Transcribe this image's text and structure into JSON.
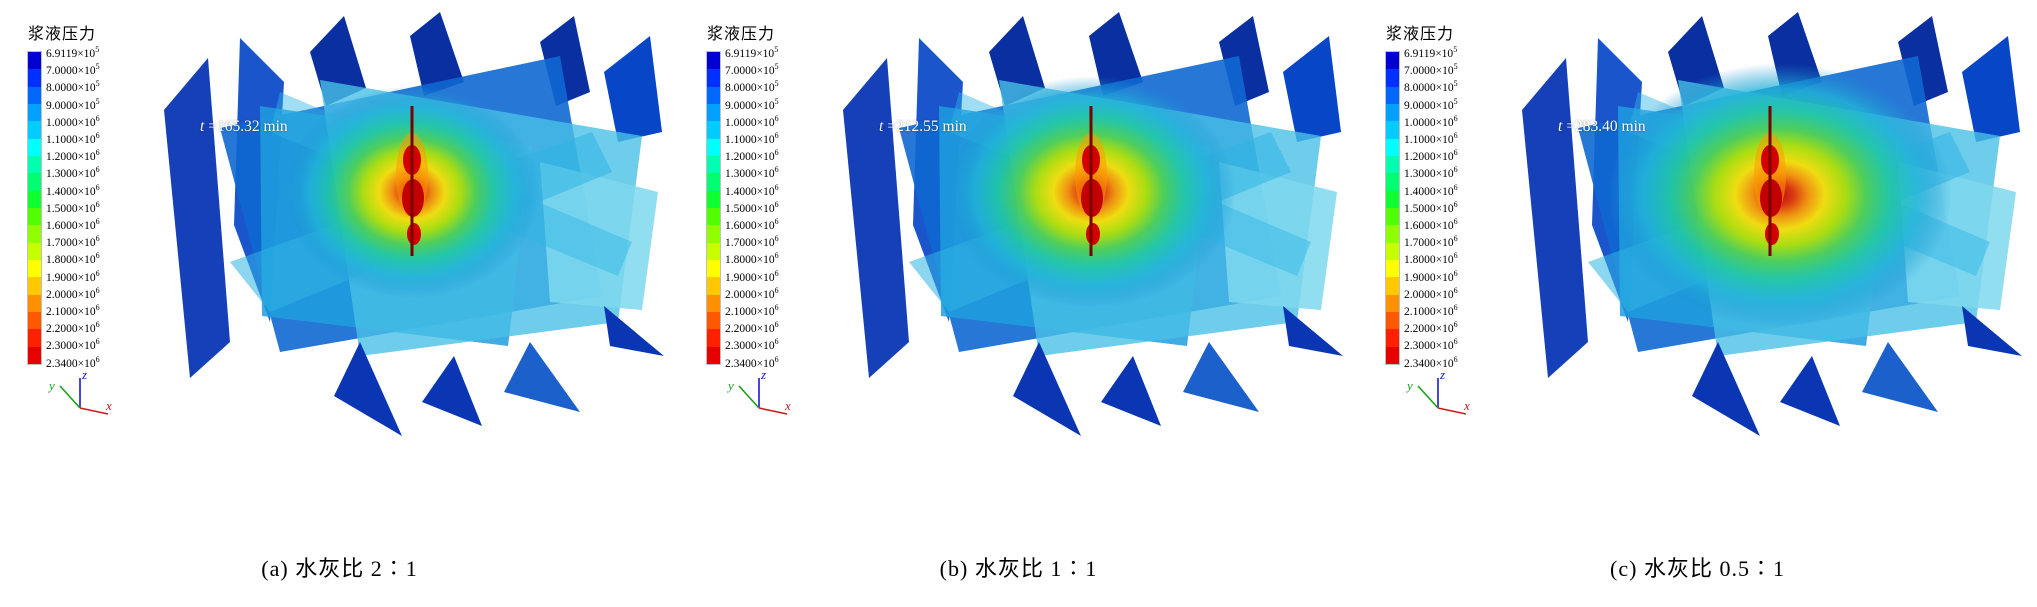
{
  "legend": {
    "title": "浆液压力",
    "ticks": [
      {
        "m": "6.9119",
        "e": "5"
      },
      {
        "m": "7.0000",
        "e": "5"
      },
      {
        "m": "8.0000",
        "e": "5"
      },
      {
        "m": "9.0000",
        "e": "5"
      },
      {
        "m": "1.0000",
        "e": "6"
      },
      {
        "m": "1.1000",
        "e": "6"
      },
      {
        "m": "1.2000",
        "e": "6"
      },
      {
        "m": "1.3000",
        "e": "6"
      },
      {
        "m": "1.4000",
        "e": "6"
      },
      {
        "m": "1.5000",
        "e": "6"
      },
      {
        "m": "1.6000",
        "e": "6"
      },
      {
        "m": "1.7000",
        "e": "6"
      },
      {
        "m": "1.8000",
        "e": "6"
      },
      {
        "m": "1.9000",
        "e": "6"
      },
      {
        "m": "2.0000",
        "e": "6"
      },
      {
        "m": "2.1000",
        "e": "6"
      },
      {
        "m": "2.2000",
        "e": "6"
      },
      {
        "m": "2.3000",
        "e": "6"
      },
      {
        "m": "2.3400",
        "e": "6"
      }
    ],
    "colors": [
      "#0000d2",
      "#0030ff",
      "#0068ff",
      "#00a0ff",
      "#00ccff",
      "#00ffff",
      "#00ffb0",
      "#00ff70",
      "#10ff30",
      "#50ff00",
      "#90ff00",
      "#c8ff00",
      "#ffff00",
      "#ffc800",
      "#ff9000",
      "#ff5800",
      "#ff2000",
      "#e60000"
    ]
  },
  "axes": {
    "x": "x",
    "y": "y",
    "z": "z"
  },
  "panels": [
    {
      "t_symbol": "t",
      "time": "=165.32 min",
      "caption": "(a) 水灰比 2∶1"
    },
    {
      "t_symbol": "t",
      "time": "=212.55 min",
      "caption": "(b) 水灰比 1∶1"
    },
    {
      "t_symbol": "t",
      "time": "=283.40 min",
      "caption": "(c) 水灰比 0.5∶1"
    }
  ],
  "chart_data": [
    {
      "type": "heatmap",
      "title": "(a) 水灰比 2∶1",
      "legend_title": "浆液压力",
      "time_label": "t =165.32 min",
      "time_min": 165.32,
      "scale_min": 691190,
      "scale_max": 2340000,
      "scale_ticks": [
        691190,
        700000,
        800000,
        900000,
        1000000,
        1100000,
        1200000,
        1300000,
        1400000,
        1500000,
        1600000,
        1700000,
        1800000,
        1900000,
        2000000,
        2100000,
        2200000,
        2300000,
        2340000
      ],
      "colormap": "rainbow blue(low)-to-red(high)",
      "legend_position": "left",
      "axes_triad": [
        "x",
        "y",
        "z"
      ]
    },
    {
      "type": "heatmap",
      "title": "(b) 水灰比 1∶1",
      "legend_title": "浆液压力",
      "time_label": "t =212.55 min",
      "time_min": 212.55,
      "scale_min": 691190,
      "scale_max": 2340000,
      "scale_ticks": [
        691190,
        700000,
        800000,
        900000,
        1000000,
        1100000,
        1200000,
        1300000,
        1400000,
        1500000,
        1600000,
        1700000,
        1800000,
        1900000,
        2000000,
        2100000,
        2200000,
        2300000,
        2340000
      ],
      "colormap": "rainbow blue(low)-to-red(high)",
      "legend_position": "left",
      "axes_triad": [
        "x",
        "y",
        "z"
      ]
    },
    {
      "type": "heatmap",
      "title": "(c) 水灰比 0.5∶1",
      "legend_title": "浆液压力",
      "time_label": "t =283.40 min",
      "time_min": 283.4,
      "scale_min": 691190,
      "scale_max": 2340000,
      "scale_ticks": [
        691190,
        700000,
        800000,
        900000,
        1000000,
        1100000,
        1200000,
        1300000,
        1400000,
        1500000,
        1600000,
        1700000,
        1800000,
        1900000,
        2000000,
        2100000,
        2200000,
        2300000,
        2340000
      ],
      "colormap": "rainbow blue(low)-to-red(high)",
      "legend_position": "left",
      "axes_triad": [
        "x",
        "y",
        "z"
      ]
    }
  ]
}
